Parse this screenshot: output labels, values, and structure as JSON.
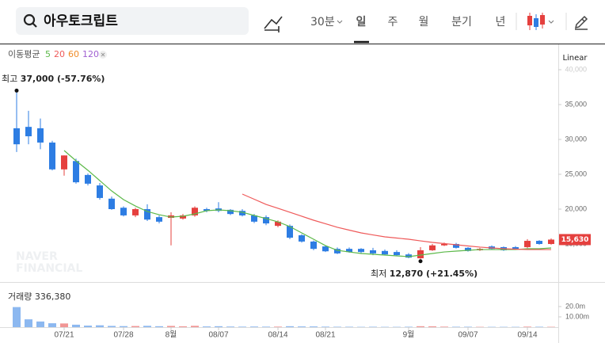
{
  "search": {
    "query": "아우토크립트"
  },
  "toolbar": {
    "interval": "30분",
    "periods": [
      "일",
      "주",
      "월",
      "분기",
      "년"
    ],
    "scale": "Linear"
  },
  "chart_data": {
    "type": "candlestick",
    "categories": [
      null,
      null,
      null,
      null,
      "07/21",
      null,
      null,
      null,
      null,
      "07/28",
      null,
      null,
      null,
      "8월",
      null,
      null,
      null,
      "08/07",
      null,
      null,
      null,
      null,
      "08/14",
      null,
      null,
      null,
      "08/21",
      null,
      null,
      null,
      null,
      null,
      null,
      "9월",
      null,
      null,
      null,
      null,
      "09/07",
      null,
      null,
      null,
      null,
      "09/14",
      null,
      null
    ],
    "open": [
      31600,
      31800,
      31600,
      29550,
      25700,
      26900,
      24900,
      23400,
      21500,
      20200,
      19100,
      20000,
      18850,
      18750,
      18650,
      19100,
      20000,
      20100,
      19900,
      19750,
      19100,
      18850,
      17600,
      17600,
      16250,
      15350,
      14650,
      14300,
      14300,
      14300,
      14100,
      14000,
      13850,
      13500,
      12950,
      14100,
      14800,
      15000,
      14450,
      14100,
      14650,
      14550,
      14550,
      14550,
      15450,
      15000
    ],
    "high": [
      37000,
      34100,
      33000,
      29800,
      27700,
      27250,
      25100,
      23750,
      21800,
      20400,
      20200,
      20700,
      19100,
      19550,
      19300,
      20400,
      20200,
      21000,
      20000,
      20000,
      19300,
      19100,
      18400,
      17800,
      16400,
      15500,
      14800,
      14500,
      14500,
      14400,
      14450,
      14200,
      14100,
      13700,
      14550,
      15000,
      15200,
      15150,
      14550,
      14450,
      14800,
      14650,
      14700,
      15700,
      15550,
      15800
    ],
    "low": [
      28200,
      29300,
      28600,
      25550,
      24800,
      23650,
      23400,
      21350,
      19900,
      18950,
      18850,
      18300,
      17950,
      14800,
      18500,
      18900,
      19550,
      19550,
      19150,
      18950,
      18000,
      17700,
      17400,
      15700,
      15200,
      14100,
      13850,
      13550,
      13750,
      13700,
      13400,
      13400,
      13300,
      12950,
      12870,
      14000,
      14700,
      14350,
      13900,
      14000,
      14200,
      14000,
      14200,
      14400,
      14900,
      14900
    ],
    "close": [
      29300,
      30450,
      29550,
      25700,
      27700,
      23850,
      23650,
      21600,
      20000,
      19100,
      20000,
      18500,
      18200,
      19100,
      19100,
      20200,
      19750,
      19750,
      19300,
      19100,
      18200,
      17950,
      18200,
      15900,
      15350,
      14300,
      13950,
      13650,
      13850,
      13850,
      13650,
      13500,
      13400,
      13050,
      14100,
      14800,
      15000,
      14450,
      14000,
      14300,
      14300,
      14100,
      14300,
      15450,
      15000,
      15630
    ],
    "close_label": "15,630",
    "up_color": "#e5403e",
    "down_color": "#2d7de3",
    "ylim": [
      9660,
      43180
    ],
    "yticks": [
      {
        "value": 15000,
        "label": "15,000"
      },
      {
        "value": 20000,
        "label": "20,000"
      },
      {
        "value": 25000,
        "label": "25,000"
      },
      {
        "value": 30000,
        "label": "30,000"
      },
      {
        "value": 35000,
        "label": "35,000"
      },
      {
        "value": 40000,
        "label": "40,000"
      }
    ],
    "ma_title": "이동평균",
    "series": [
      {
        "name": "5",
        "color": "#5db94a",
        "values": [
          null,
          null,
          null,
          null,
          28410,
          26930,
          25570,
          24090,
          22610,
          21360,
          20450,
          19660,
          19200,
          18860,
          18980,
          19320,
          19770,
          19890,
          19770,
          19550,
          19090,
          18640,
          18180,
          17500,
          16590,
          15680,
          14770,
          14090,
          13860,
          13640,
          13520,
          13410,
          13300,
          13180,
          13410,
          13640,
          13860,
          13980,
          14090,
          14200,
          14200,
          14200,
          14200,
          14320,
          14320,
          14430
        ]
      },
      {
        "name": "20",
        "color": "#ef5a5a",
        "values": [
          null,
          null,
          null,
          null,
          null,
          null,
          null,
          null,
          null,
          null,
          null,
          null,
          null,
          null,
          null,
          null,
          null,
          null,
          null,
          22160,
          21420,
          20680,
          20120,
          19550,
          18980,
          18410,
          17900,
          17390,
          16990,
          16590,
          16300,
          16020,
          15850,
          15680,
          15450,
          15230,
          15060,
          14890,
          14720,
          14550,
          14430,
          14320,
          14260,
          14200,
          14200,
          14200
        ]
      },
      {
        "name": "60",
        "color": "#f08c28",
        "values": [
          null,
          null,
          null,
          null,
          null,
          null,
          null,
          null,
          null,
          null,
          null,
          null,
          null,
          null,
          null,
          null,
          null,
          null,
          null,
          null,
          null,
          null,
          null,
          null,
          null,
          null,
          null,
          null,
          null,
          null,
          null,
          null,
          null,
          null,
          null,
          null,
          null,
          null,
          null,
          null,
          null,
          null,
          null,
          null,
          null,
          null
        ]
      },
      {
        "name": "120",
        "color": "#a05fd1",
        "values": [
          null,
          null,
          null,
          null,
          null,
          null,
          null,
          null,
          null,
          null,
          null,
          null,
          null,
          null,
          null,
          null,
          null,
          null,
          null,
          null,
          null,
          null,
          null,
          null,
          null,
          null,
          null,
          null,
          null,
          null,
          null,
          null,
          null,
          null,
          null,
          null,
          null,
          null,
          null,
          null,
          null,
          null,
          null,
          null,
          null,
          null
        ]
      }
    ],
    "high_annotation": {
      "label": "최고",
      "text": "37,000 (-57.76%)"
    },
    "low_annotation": {
      "label": "최저",
      "text": "12,870 (+21.45%)"
    },
    "watermark": [
      "NAVER",
      "FINANCIAL"
    ],
    "volume": {
      "title": "거래량",
      "last_label": "336,380",
      "values": [
        19500000,
        7600000,
        5500000,
        3800000,
        3600000,
        2400000,
        1500000,
        1800000,
        1200000,
        1000000,
        1100000,
        1300000,
        900000,
        1200000,
        800000,
        1300000,
        700000,
        900000,
        600000,
        500000,
        600000,
        500000,
        500000,
        900000,
        700000,
        700000,
        500000,
        400000,
        400000,
        300000,
        400000,
        300000,
        300000,
        400000,
        900000,
        800000,
        500000,
        400000,
        400000,
        300000,
        300000,
        300000,
        300000,
        500000,
        400000,
        336380
      ],
      "ylim": [
        0,
        40000000
      ],
      "yticks": [
        {
          "value": 10000000,
          "label": "10.00m"
        },
        {
          "value": 20000000,
          "label": "20.0m"
        }
      ]
    }
  }
}
